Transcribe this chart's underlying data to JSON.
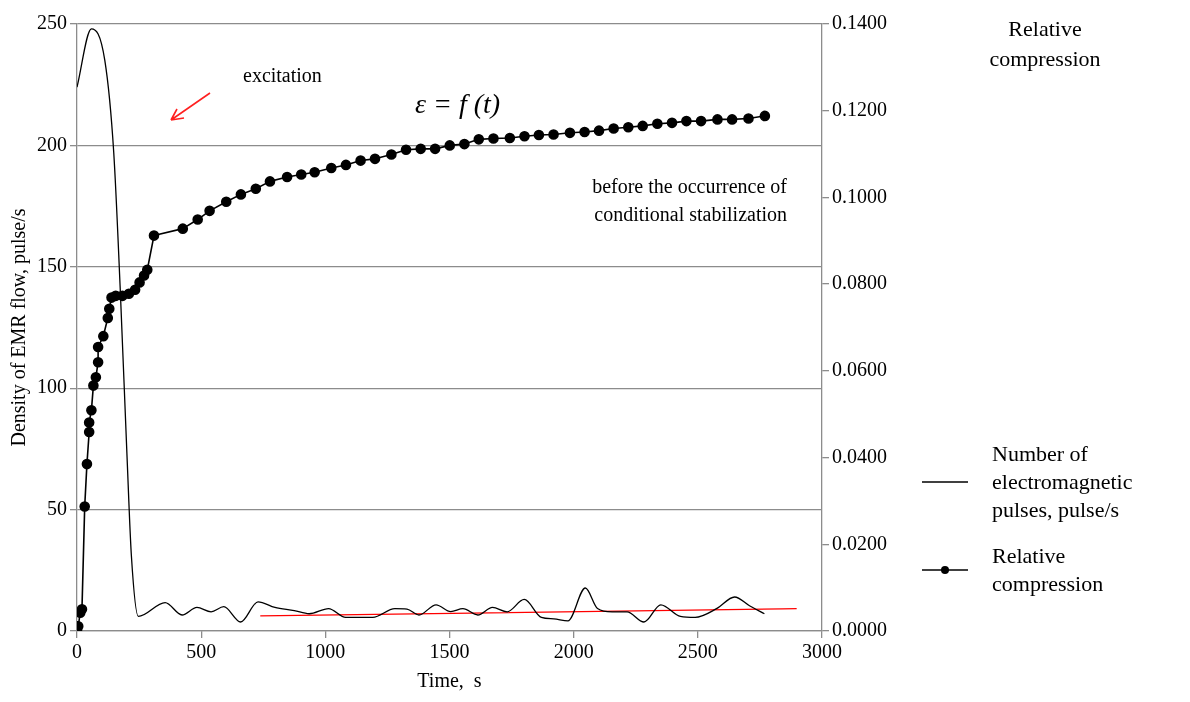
{
  "chart_data": {
    "type": "line",
    "xlabel": "Time,  s",
    "ylabel": "Density of EMR flow, pulse/s",
    "y2label": "Relative compression",
    "xlim": [
      0,
      3000
    ],
    "xticks": [
      0,
      500,
      1000,
      1500,
      2000,
      2500,
      3000
    ],
    "ylim": [
      0,
      250
    ],
    "yticks": [
      0,
      50,
      100,
      150,
      200,
      250
    ],
    "y2lim": [
      0,
      0.14
    ],
    "y2ticks": [
      {
        "value": 0,
        "label": "0.0000"
      },
      {
        "value": 0.02,
        "label": "0.0200"
      },
      {
        "value": 0.04,
        "label": "0.0400"
      },
      {
        "value": 0.06,
        "label": "0.0600"
      },
      {
        "value": 0.08,
        "label": "0.0800"
      },
      {
        "value": 0.1,
        "label": "0.1000"
      },
      {
        "value": 0.12,
        "label": "0.1200"
      },
      {
        "value": 0.14,
        "label": "0.1400"
      }
    ],
    "grid": "y",
    "legend": "right",
    "annotations": [
      "excitation",
      "ε = f (t)",
      "before the occurrence of conditional stabilization"
    ],
    "series": [
      {
        "name": "Number of electromagnetic pulses, pulse/s",
        "color": "#000000",
        "marker": "none",
        "line_style": "solid",
        "x": [
          0,
          58,
          112,
          148,
          174,
          201,
          219,
          247,
          355,
          423,
          483,
          540,
          591,
          659,
          729,
          797,
          875,
          935,
          1013,
          1082,
          1191,
          1280,
          1329,
          1377,
          1446,
          1505,
          1554,
          1614,
          1673,
          1732,
          1801,
          1870,
          1920,
          1977,
          2047,
          2096,
          2155,
          2215,
          2283,
          2351,
          2430,
          2489,
          2577,
          2648,
          2708,
          2768
        ],
        "values": [
          224,
          248,
          235,
          197,
          141,
          73,
          31,
          6,
          11.7,
          6.6,
          9.7,
          7.9,
          10,
          3.7,
          12,
          9.7,
          8.4,
          7.1,
          9.2,
          5.6,
          5.6,
          9.2,
          9,
          6.6,
          10.8,
          8,
          9.2,
          6.6,
          9.7,
          7.9,
          13,
          5.6,
          5,
          4.2,
          17.7,
          9.3,
          7.9,
          7.9,
          3.7,
          10.8,
          6,
          5.6,
          9.3,
          14,
          10.4,
          7.1
        ]
      },
      {
        "name": "Relative compression",
        "color": "#000000",
        "axis": "y2",
        "marker": "circle",
        "line_style": "solid",
        "x": [
          0,
          5,
          13,
          20,
          31,
          40,
          49,
          49,
          58,
          66,
          76,
          85,
          85,
          106,
          124,
          130,
          139,
          156,
          183,
          209,
          234,
          252,
          270,
          283,
          310,
          426,
          486,
          534,
          601,
          660,
          720,
          777,
          846,
          903,
          957,
          1024,
          1083,
          1142,
          1200,
          1266,
          1325,
          1384,
          1442,
          1501,
          1560,
          1618,
          1677,
          1743,
          1802,
          1860,
          1919,
          1985,
          2044,
          2102,
          2161,
          2220,
          2278,
          2337,
          2396,
          2454,
          2513,
          2579,
          2638,
          2704,
          2770
        ],
        "values": [
          0.0003,
          0.0011,
          0.0042,
          0.005,
          0.0287,
          0.0385,
          0.0459,
          0.0481,
          0.0509,
          0.0566,
          0.0585,
          0.062,
          0.0655,
          0.068,
          0.0722,
          0.0743,
          0.0769,
          0.0773,
          0.0773,
          0.0778,
          0.0787,
          0.0804,
          0.082,
          0.0833,
          0.0912,
          0.0928,
          0.0949,
          0.0969,
          0.099,
          0.1007,
          0.102,
          0.1037,
          0.1047,
          0.1053,
          0.1058,
          0.1068,
          0.1075,
          0.1085,
          0.1089,
          0.1099,
          0.111,
          0.1112,
          0.1112,
          0.112,
          0.1123,
          0.1134,
          0.1136,
          0.1137,
          0.1141,
          0.1144,
          0.1145,
          0.1149,
          0.1151,
          0.1154,
          0.1159,
          0.1162,
          0.1165,
          0.117,
          0.1172,
          0.1176,
          0.1176,
          0.118,
          0.118,
          0.1182,
          0.1188
        ]
      },
      {
        "type": "line",
        "color": "#ff0000",
        "x": [
          738,
          2898
        ],
        "values": [
          6.2,
          9.2
        ]
      }
    ]
  }
}
